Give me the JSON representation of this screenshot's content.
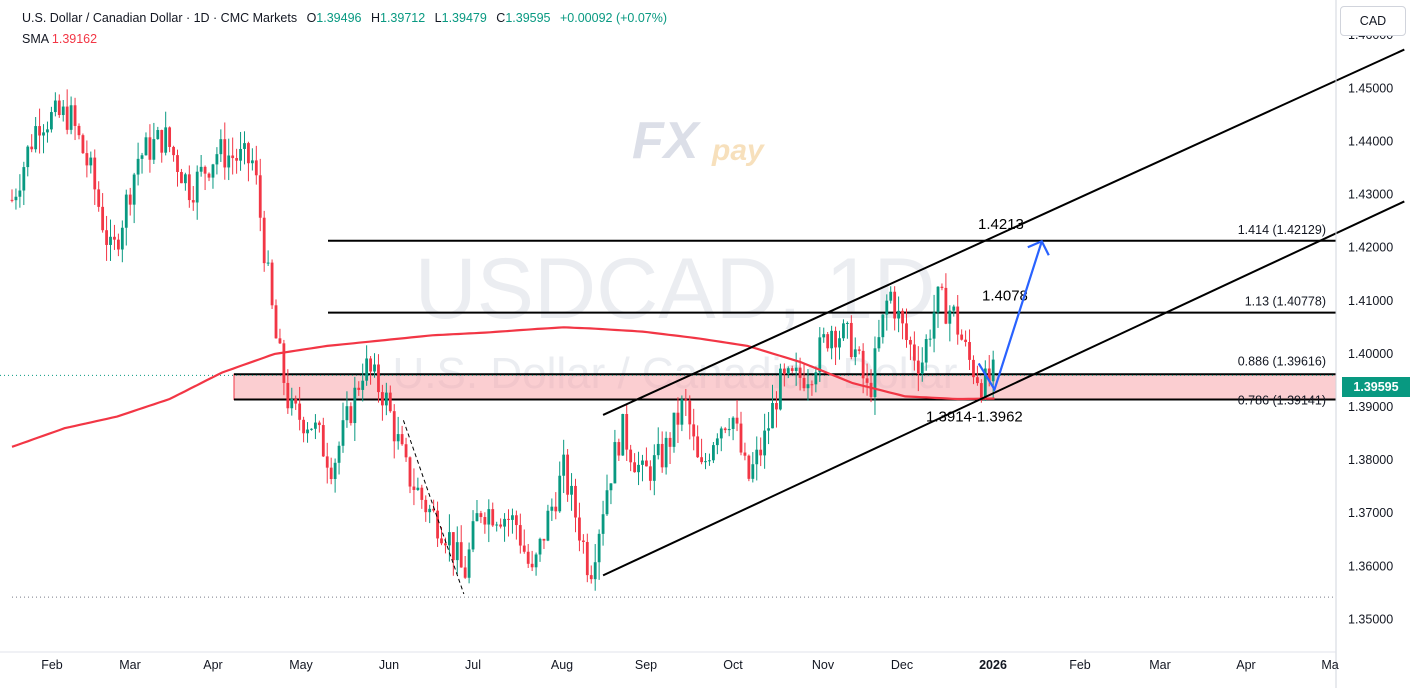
{
  "header": {
    "symbol_line": "U.S. Dollar / Canadian Dollar · 1D · CMC Markets",
    "open_label": "O",
    "open": "1.39496",
    "high_label": "H",
    "high": "1.39712",
    "low_label": "L",
    "low": "1.39479",
    "close_label": "C",
    "close": "1.39595",
    "change": "+0.00092 (+0.07%)"
  },
  "indicator": {
    "label": "SMA",
    "value": "1.39162"
  },
  "currency_button": "CAD",
  "last_price": "1.39595",
  "watermark": {
    "symbol": "USDCAD, 1D",
    "name": "U.S. Dollar / Canadian Dollar",
    "logo_fx": "FX",
    "logo_pay": "pay"
  },
  "colors": {
    "up": "#089981",
    "down": "#f23645",
    "sma": "#f23645",
    "zone": "#f7a6ab",
    "arrow": "#2962ff"
  },
  "chart_data": {
    "type": "candlestick",
    "title": "U.S. Dollar / Canadian Dollar · 1D · CMC Markets",
    "ylim": [
      1.345,
      1.4655
    ],
    "y_ticks": [
      "1.46000",
      "1.45000",
      "1.44000",
      "1.43000",
      "1.42000",
      "1.41000",
      "1.40000",
      "1.39000",
      "1.38000",
      "1.37000",
      "1.36000",
      "1.35000"
    ],
    "x_ticks": [
      "Feb",
      "Mar",
      "Apr",
      "May",
      "Jun",
      "Jul",
      "Aug",
      "Sep",
      "Oct",
      "Nov",
      "Dec",
      "2026",
      "Feb",
      "Mar",
      "Apr",
      "Ma"
    ],
    "price_anchors": [
      {
        "t": 0,
        "p": 1.429
      },
      {
        "t": 10,
        "p": 1.444
      },
      {
        "t": 22,
        "p": 1.445
      },
      {
        "t": 30,
        "p": 1.434
      },
      {
        "t": 38,
        "p": 1.418
      },
      {
        "t": 48,
        "p": 1.437
      },
      {
        "t": 58,
        "p": 1.441
      },
      {
        "t": 68,
        "p": 1.431
      },
      {
        "t": 78,
        "p": 1.438
      },
      {
        "t": 92,
        "p": 1.436
      },
      {
        "t": 100,
        "p": 1.404
      },
      {
        "t": 106,
        "p": 1.389
      },
      {
        "t": 114,
        "p": 1.387
      },
      {
        "t": 122,
        "p": 1.379
      },
      {
        "t": 128,
        "p": 1.388
      },
      {
        "t": 134,
        "p": 1.398
      },
      {
        "t": 142,
        "p": 1.392
      },
      {
        "t": 150,
        "p": 1.378
      },
      {
        "t": 158,
        "p": 1.371
      },
      {
        "t": 166,
        "p": 1.366
      },
      {
        "t": 172,
        "p": 1.358
      },
      {
        "t": 178,
        "p": 1.371
      },
      {
        "t": 186,
        "p": 1.37
      },
      {
        "t": 192,
        "p": 1.368
      },
      {
        "t": 198,
        "p": 1.358
      },
      {
        "t": 204,
        "p": 1.369
      },
      {
        "t": 210,
        "p": 1.378
      },
      {
        "t": 216,
        "p": 1.367
      },
      {
        "t": 220,
        "p": 1.359
      },
      {
        "t": 226,
        "p": 1.374
      },
      {
        "t": 232,
        "p": 1.386
      },
      {
        "t": 240,
        "p": 1.377
      },
      {
        "t": 248,
        "p": 1.381
      },
      {
        "t": 256,
        "p": 1.391
      },
      {
        "t": 262,
        "p": 1.377
      },
      {
        "t": 268,
        "p": 1.386
      },
      {
        "t": 274,
        "p": 1.389
      },
      {
        "t": 280,
        "p": 1.376
      },
      {
        "t": 286,
        "p": 1.383
      },
      {
        "t": 292,
        "p": 1.394
      },
      {
        "t": 298,
        "p": 1.395
      },
      {
        "t": 304,
        "p": 1.397
      },
      {
        "t": 312,
        "p": 1.405
      },
      {
        "t": 320,
        "p": 1.402
      },
      {
        "t": 326,
        "p": 1.392
      },
      {
        "t": 334,
        "p": 1.412
      },
      {
        "t": 340,
        "p": 1.403
      },
      {
        "t": 346,
        "p": 1.398
      },
      {
        "t": 352,
        "p": 1.41
      },
      {
        "t": 358,
        "p": 1.408
      },
      {
        "t": 364,
        "p": 1.399
      },
      {
        "t": 370,
        "p": 1.394
      },
      {
        "t": 374,
        "p": 1.396
      }
    ],
    "sma_anchors": [
      {
        "t": 0,
        "p": 1.3825
      },
      {
        "t": 20,
        "p": 1.386
      },
      {
        "t": 40,
        "p": 1.3882
      },
      {
        "t": 60,
        "p": 1.3915
      },
      {
        "t": 80,
        "p": 1.3965
      },
      {
        "t": 100,
        "p": 1.4
      },
      {
        "t": 120,
        "p": 1.4015
      },
      {
        "t": 140,
        "p": 1.4025
      },
      {
        "t": 160,
        "p": 1.4035
      },
      {
        "t": 180,
        "p": 1.404
      },
      {
        "t": 200,
        "p": 1.4047
      },
      {
        "t": 210,
        "p": 1.405
      },
      {
        "t": 220,
        "p": 1.4048
      },
      {
        "t": 240,
        "p": 1.4042
      },
      {
        "t": 260,
        "p": 1.403
      },
      {
        "t": 280,
        "p": 1.4015
      },
      {
        "t": 300,
        "p": 1.3985
      },
      {
        "t": 320,
        "p": 1.3945
      },
      {
        "t": 340,
        "p": 1.392
      },
      {
        "t": 360,
        "p": 1.3915
      },
      {
        "t": 374,
        "p": 1.3916
      }
    ],
    "horizontal_levels": [
      {
        "price": 1.42129,
        "label": "1.414 (1.42129)",
        "callout": "1.4213"
      },
      {
        "price": 1.40778,
        "label": "1.13 (1.40778)",
        "callout": "1.4078"
      },
      {
        "price": 1.39616,
        "label": "0.886 (1.39616)",
        "callout": ""
      },
      {
        "price": 1.39141,
        "label": "0.786 (1.39141)",
        "callout": ""
      }
    ],
    "zone": {
      "low": 1.3914,
      "high": 1.3962,
      "label": "1.3914-1.3962"
    },
    "channel": {
      "upper": [
        {
          "t": 225,
          "p": 1.3885
        },
        {
          "t": 530,
          "p": 1.4573
        }
      ],
      "lower": [
        {
          "t": 225,
          "p": 1.3583
        },
        {
          "t": 530,
          "p": 1.4287
        }
      ]
    },
    "projection_arrow": [
      {
        "t": 368,
        "p": 1.3982
      },
      {
        "t": 374,
        "p": 1.3933
      },
      {
        "t": 392,
        "p": 1.4212
      }
    ],
    "low_line": 1.3542,
    "last_close": 1.39595
  }
}
